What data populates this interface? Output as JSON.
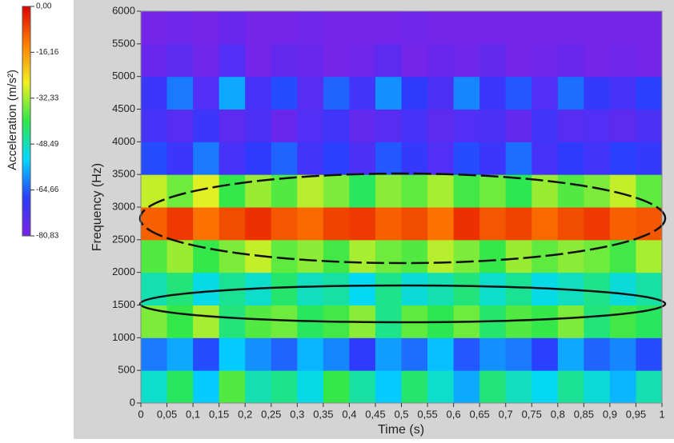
{
  "chart_data": {
    "type": "heatmap",
    "x_label": "Time (s)",
    "y_label": "Frequency (Hz)",
    "colorbar_label": "Acceleration (m/s²)",
    "x": [
      0.025,
      0.075,
      0.125,
      0.175,
      0.225,
      0.275,
      0.325,
      0.375,
      0.425,
      0.475,
      0.525,
      0.575,
      0.625,
      0.675,
      0.725,
      0.775,
      0.825,
      0.875,
      0.925,
      0.975
    ],
    "y": [
      250,
      750,
      1250,
      1750,
      2250,
      2750,
      3250,
      3750,
      4250,
      4750,
      5250,
      5750
    ],
    "z": [
      [
        -50,
        -42,
        -55,
        -38,
        -48,
        -45,
        -52,
        -40,
        -47,
        -55,
        -43,
        -50,
        -58,
        -44,
        -49,
        -53,
        -46,
        -51,
        -57,
        -48
      ],
      [
        -62,
        -58,
        -66,
        -55,
        -60,
        -64,
        -57,
        -61,
        -68,
        -59,
        -63,
        -56,
        -65,
        -60,
        -62,
        -67,
        -58,
        -64,
        -61,
        -66
      ],
      [
        -35,
        -40,
        -32,
        -44,
        -38,
        -36,
        -42,
        -39,
        -34,
        -45,
        -37,
        -41,
        -36,
        -43,
        -38,
        -40,
        -35,
        -44,
        -39,
        -42
      ],
      [
        -48,
        -44,
        -52,
        -46,
        -50,
        -43,
        -49,
        -47,
        -53,
        -45,
        -51,
        -48,
        -44,
        -50,
        -46,
        -52,
        -49,
        -45,
        -51,
        -47
      ],
      [
        -38,
        -33,
        -40,
        -35,
        -30,
        -37,
        -34,
        -39,
        -32,
        -36,
        -38,
        -31,
        -35,
        -40,
        -33,
        -37,
        -34,
        -36,
        -39,
        -32
      ],
      [
        -10,
        -6,
        -12,
        -8,
        -5,
        -9,
        -11,
        -7,
        -6,
        -10,
        -8,
        -12,
        -5,
        -9,
        -7,
        -11,
        -8,
        -6,
        -10,
        -9
      ],
      [
        -30,
        -36,
        -28,
        -40,
        -33,
        -38,
        -31,
        -35,
        -42,
        -34,
        -37,
        -32,
        -39,
        -36,
        -41,
        -33,
        -38,
        -35,
        -30,
        -37
      ],
      [
        -66,
        -70,
        -62,
        -72,
        -68,
        -64,
        -71,
        -67,
        -73,
        -65,
        -69,
        -74,
        -66,
        -70,
        -63,
        -72,
        -68,
        -71,
        -67,
        -69
      ],
      [
        -72,
        -75,
        -70,
        -76,
        -73,
        -78,
        -74,
        -71,
        -77,
        -75,
        -72,
        -76,
        -74,
        -73,
        -77,
        -71,
        -75,
        -74,
        -76,
        -73
      ],
      [
        -70,
        -62,
        -74,
        -58,
        -72,
        -66,
        -75,
        -64,
        -71,
        -60,
        -68,
        -73,
        -61,
        -70,
        -65,
        -74,
        -63,
        -69,
        -72,
        -67
      ],
      [
        -78,
        -76,
        -79,
        -74,
        -80,
        -77,
        -78,
        -80,
        -79,
        -76,
        -80,
        -78,
        -79,
        -77,
        -80,
        -79,
        -78,
        -80,
        -79,
        -80
      ],
      [
        -80,
        -79,
        -80,
        -78,
        -80,
        -80,
        -79,
        -80,
        -80,
        -80,
        -79,
        -80,
        -80,
        -80,
        -80,
        -80,
        -80,
        -80,
        -80,
        -80
      ]
    ],
    "xlim": [
      0,
      1
    ],
    "xticks": [
      0,
      {
        "value": 0.05,
        "label": "0,05"
      },
      {
        "value": 0.1,
        "label": "0,1"
      },
      {
        "value": 0.15,
        "label": "0,15"
      },
      {
        "value": 0.2,
        "label": "0,2"
      },
      {
        "value": 0.25,
        "label": "0,25"
      },
      {
        "value": 0.3,
        "label": "0,3"
      },
      {
        "value": 0.35,
        "label": "0,35"
      },
      {
        "value": 0.4,
        "label": "0,4"
      },
      {
        "value": 0.45,
        "label": "0,45"
      },
      {
        "value": 0.5,
        "label": "0,5"
      },
      {
        "value": 0.55,
        "label": "0,55"
      },
      {
        "value": 0.6,
        "label": "0,6"
      },
      {
        "value": 0.65,
        "label": "0,65"
      },
      {
        "value": 0.7,
        "label": "0,7"
      },
      {
        "value": 0.75,
        "label": "0,75"
      },
      {
        "value": 0.8,
        "label": "0,8"
      },
      {
        "value": 0.85,
        "label": "0,85"
      },
      {
        "value": 0.9,
        "label": "0,9"
      },
      {
        "value": 0.95,
        "label": "0,95"
      },
      1
    ],
    "ylim": [
      0,
      6000
    ],
    "yticks": [
      0,
      500,
      1000,
      1500,
      2000,
      2500,
      3000,
      3500,
      4000,
      4500,
      5000,
      5500,
      6000
    ],
    "zlim": [
      -80.83,
      0
    ],
    "zticks": [
      {
        "value": 0,
        "label": "0,00"
      },
      {
        "value": -16.16,
        "label": "-16,16"
      },
      {
        "value": -32.33,
        "label": "-32,33"
      },
      {
        "value": -48.49,
        "label": "-48,49"
      },
      {
        "value": -64.66,
        "label": "-64,66"
      },
      {
        "value": -80.83,
        "label": "-80,83"
      }
    ],
    "colorscale": [
      "#7a22e8",
      "#2a3cff",
      "#00d8ff",
      "#2ee84a",
      "#f0f020",
      "#ff8000",
      "#e00000"
    ]
  }
}
